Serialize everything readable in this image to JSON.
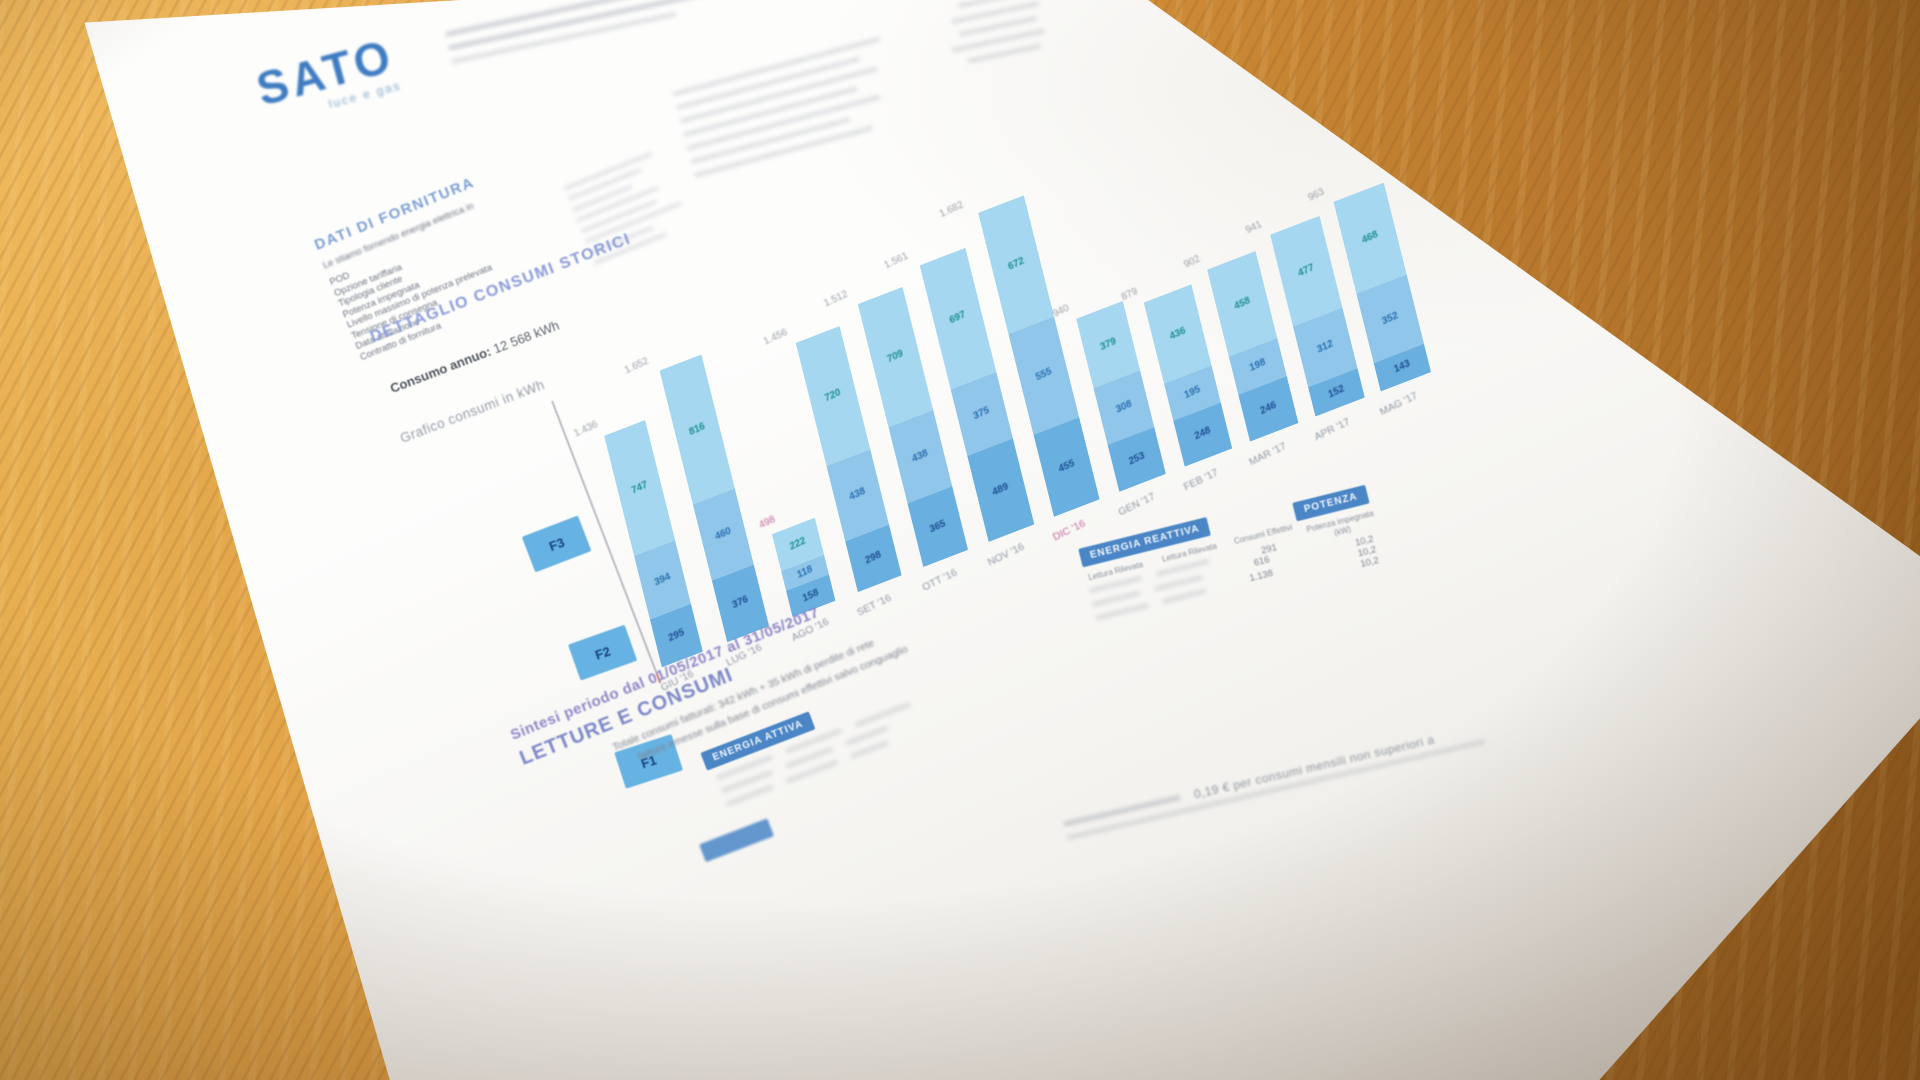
{
  "logo": {
    "brand": "SATO",
    "tagline": "luce e gas"
  },
  "supply_section": {
    "title": "DATI DI FORNITURA",
    "intro": "Le stiamo fornendo energia elettrica in",
    "labels": [
      "POD",
      "Opzione tariffaria",
      "Tipologia cliente",
      "Potenza impegnata",
      "Livello massimo di potenza prelevata",
      "Tensione di consegna",
      "Data attivazione",
      "Contratto di fornitura"
    ]
  },
  "consumption_section": {
    "title": "DETTAGLIO CONSUMI STORICI",
    "annual_label": "Consumo annuo:",
    "annual_value": "12 568 kWh",
    "chart_caption": "Grafico consumi in kWh"
  },
  "chart_data": {
    "type": "bar",
    "stacked": true,
    "title": "Grafico consumi in kWh",
    "ylabel": "kWh",
    "grid": false,
    "legend_position": "left",
    "categories": [
      "GIU '16",
      "LUG '16",
      "AGO '16",
      "SET '16",
      "OTT '16",
      "NOV '16",
      "DIC '16",
      "GEN '17",
      "FEB '17",
      "MAR '17",
      "APR '17",
      "MAG '17"
    ],
    "series": [
      {
        "name": "F1",
        "values": [
          295,
          376,
          158,
          298,
          365,
          489,
          455,
          253,
          248,
          246,
          152,
          143
        ]
      },
      {
        "name": "F2",
        "values": [
          394,
          460,
          118,
          438,
          438,
          375,
          555,
          308,
          195,
          198,
          312,
          352
        ]
      },
      {
        "name": "F3",
        "values": [
          747,
          816,
          222,
          720,
          709,
          697,
          672,
          379,
          436,
          458,
          477,
          468
        ]
      }
    ],
    "totals": [
      "1.436",
      "1.652",
      "498",
      "1.456",
      "1.512",
      "1.561",
      "1.682",
      "940",
      "879",
      "902",
      "941",
      "963"
    ],
    "legend": [
      "F3",
      "F2",
      "F1"
    ],
    "colors": {
      "F1": "#69afe0",
      "F2": "#8fc6ea",
      "F3": "#a5d7f0"
    },
    "label_colors": {
      "F1": "#1d4f92",
      "F2": "#2a6fb0",
      "F3": "#1d8f96"
    },
    "highlight_color": "#c0689a",
    "highlight_month_index": 6,
    "highlight_total_index": 2
  },
  "summary_section": {
    "period_line": "Sintesi periodo dal 01/05/2017 al 31/05/2017",
    "title": "LETTURE E CONSUMI",
    "notes": [
      "Totale consumi fatturati: 342 kWh + 35 kWh di perdite di rete",
      "fatture emesse sulla base di consumi effettivi salvo conguaglio"
    ]
  },
  "tables": {
    "energia_attiva": {
      "header": "ENERGIA ATTIVA"
    },
    "energia_reattiva": {
      "header": "ENERGIA REATTIVA",
      "columns": [
        "Lettura Rilevata",
        "Lettura Rilevata",
        "Consumi Effettivi"
      ],
      "values": [
        "291",
        "616",
        "1.138"
      ]
    },
    "potenza": {
      "header": "POTENZA",
      "column": "Potenza impegnata (kW)",
      "values": [
        "10,2",
        "10,2",
        "10,2"
      ]
    }
  },
  "footnote": "0,19 € per consumi mensili non superiori a"
}
